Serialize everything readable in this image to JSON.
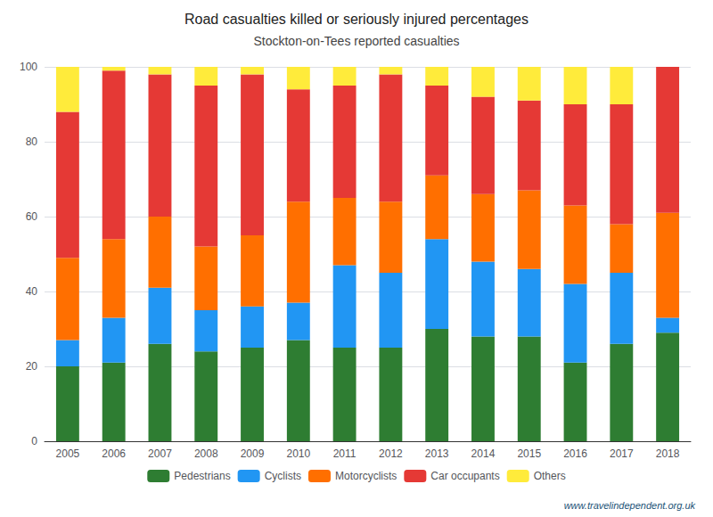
{
  "chart_data": {
    "type": "bar",
    "title": "Road casualties killed or seriously injured percentages",
    "subtitle": "Stockton-on-Tees reported casualties",
    "categories": [
      "2005",
      "2006",
      "2007",
      "2008",
      "2009",
      "2010",
      "2011",
      "2012",
      "2013",
      "2014",
      "2015",
      "2016",
      "2017",
      "2018"
    ],
    "series": [
      {
        "name": "Pedestrians",
        "color": "#2e7d32",
        "values": [
          20,
          21,
          26,
          24,
          25,
          27,
          25,
          25,
          30,
          28,
          28,
          21,
          26,
          29
        ]
      },
      {
        "name": "Cyclists",
        "color": "#2196f3",
        "values": [
          7,
          12,
          15,
          11,
          11,
          10,
          22,
          20,
          24,
          20,
          18,
          21,
          19,
          4
        ]
      },
      {
        "name": "Motorcyclists",
        "color": "#ff6f00",
        "values": [
          22,
          21,
          19,
          17,
          19,
          27,
          18,
          19,
          17,
          18,
          21,
          21,
          13,
          28
        ]
      },
      {
        "name": "Car occupants",
        "color": "#e53935",
        "values": [
          39,
          45,
          38,
          43,
          43,
          30,
          30,
          34,
          24,
          26,
          24,
          27,
          32,
          39
        ]
      },
      {
        "name": "Others",
        "color": "#ffeb3b",
        "values": [
          12,
          1,
          2,
          5,
          2,
          6,
          5,
          2,
          5,
          8,
          9,
          10,
          10,
          0
        ]
      }
    ],
    "stacked": true,
    "ylim": [
      0,
      100
    ],
    "yticks": [
      0,
      20,
      40,
      60,
      80,
      100
    ],
    "grid": true,
    "legend": "bottom",
    "annotations": [
      "www.travelindependent.org.uk"
    ]
  }
}
